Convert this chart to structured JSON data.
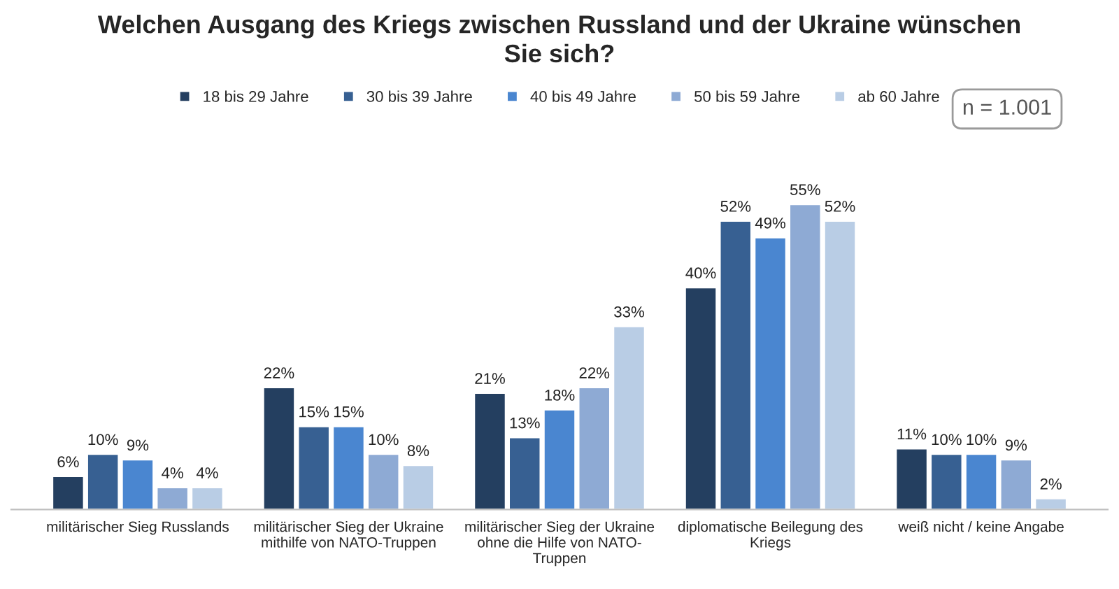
{
  "chart_data": {
    "type": "bar",
    "title": "Welchen Ausgang des Kriegs zwischen Russland und der Ukraine wünschen Sie sich?",
    "categories": [
      "militärischer Sieg Russlands",
      "militärischer Sieg der Ukraine mithilfe von NATO-Truppen",
      "militärischer Sieg der Ukraine ohne die Hilfe von NATO-Truppen",
      "diplomatische Beilegung des Kriegs",
      "weiß nicht / keine Angabe"
    ],
    "series": [
      {
        "name": "18 bis 29 Jahre",
        "color": "#243f60",
        "values": [
          6,
          22,
          21,
          40,
          11
        ],
        "value_labels": [
          "6%",
          "22%",
          "21%",
          "40%",
          "11%"
        ]
      },
      {
        "name": "30 bis 39 Jahre",
        "color": "#376092",
        "values": [
          10,
          15,
          13,
          52,
          10
        ],
        "value_labels": [
          "10%",
          "15%",
          "13%",
          "52%",
          "10%"
        ]
      },
      {
        "name": "40 bis 49 Jahre",
        "color": "#4a86d0",
        "values": [
          9,
          15,
          18,
          49,
          10
        ],
        "value_labels": [
          "9%",
          "15%",
          "18%",
          "49%",
          "10%"
        ]
      },
      {
        "name": "50 bis 59 Jahre",
        "color": "#8eaad4",
        "values": [
          4,
          10,
          22,
          55,
          9
        ],
        "value_labels": [
          "4%",
          "10%",
          "22%",
          "55%",
          "9%"
        ]
      },
      {
        "name": "ab 60 Jahre",
        "color": "#b9cde5",
        "values": [
          4,
          8,
          33,
          52,
          2
        ],
        "value_labels": [
          "4%",
          "8%",
          "33%",
          "52%",
          "2%"
        ]
      }
    ],
    "annotations": [
      "n = 1.001"
    ],
    "legend": "top",
    "grid": false
  }
}
